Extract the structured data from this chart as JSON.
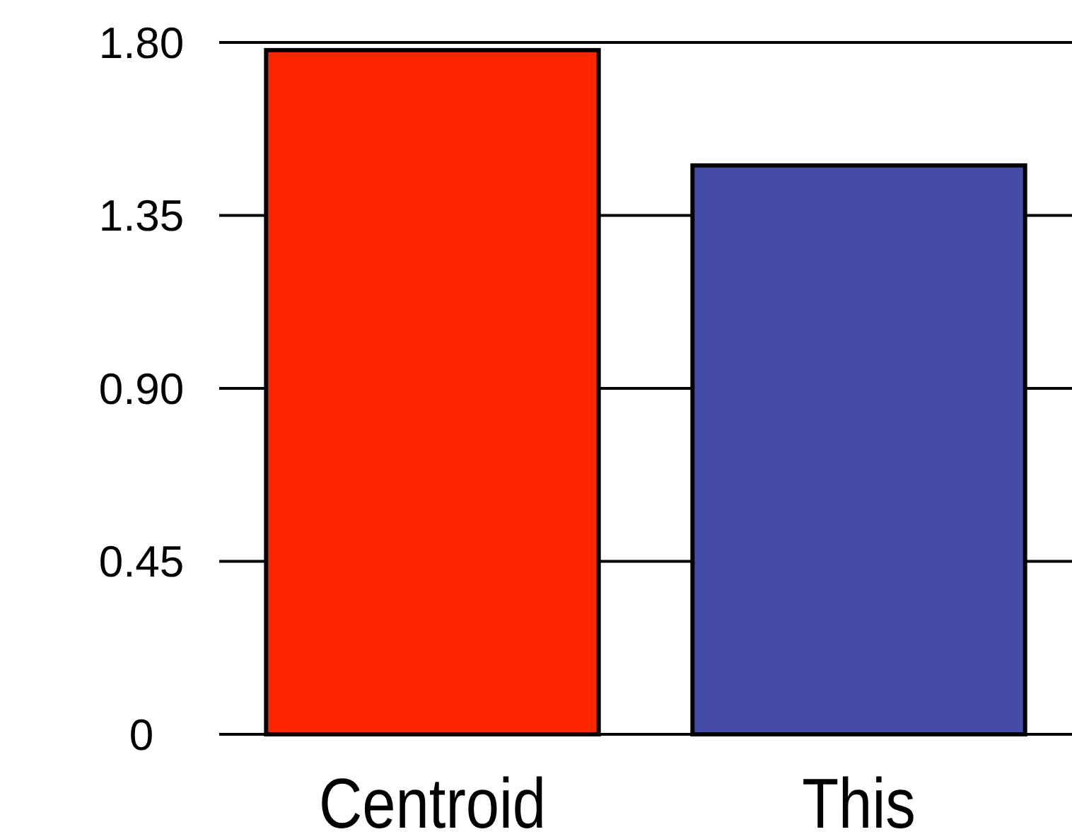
{
  "chart_data": {
    "type": "bar",
    "categories": [
      "Centroid",
      "This"
    ],
    "values": [
      1.78,
      1.48
    ],
    "colors": [
      "#ff2600",
      "#444ca8"
    ],
    "ylim": [
      0,
      1.8
    ],
    "yticks": [
      0,
      {
        "value": 0.45,
        "label": "0.45"
      },
      {
        "value": 0.9,
        "label": "0.90"
      },
      1.35,
      {
        "value": 1.8,
        "label": "1.80"
      }
    ],
    "grid": "y"
  }
}
